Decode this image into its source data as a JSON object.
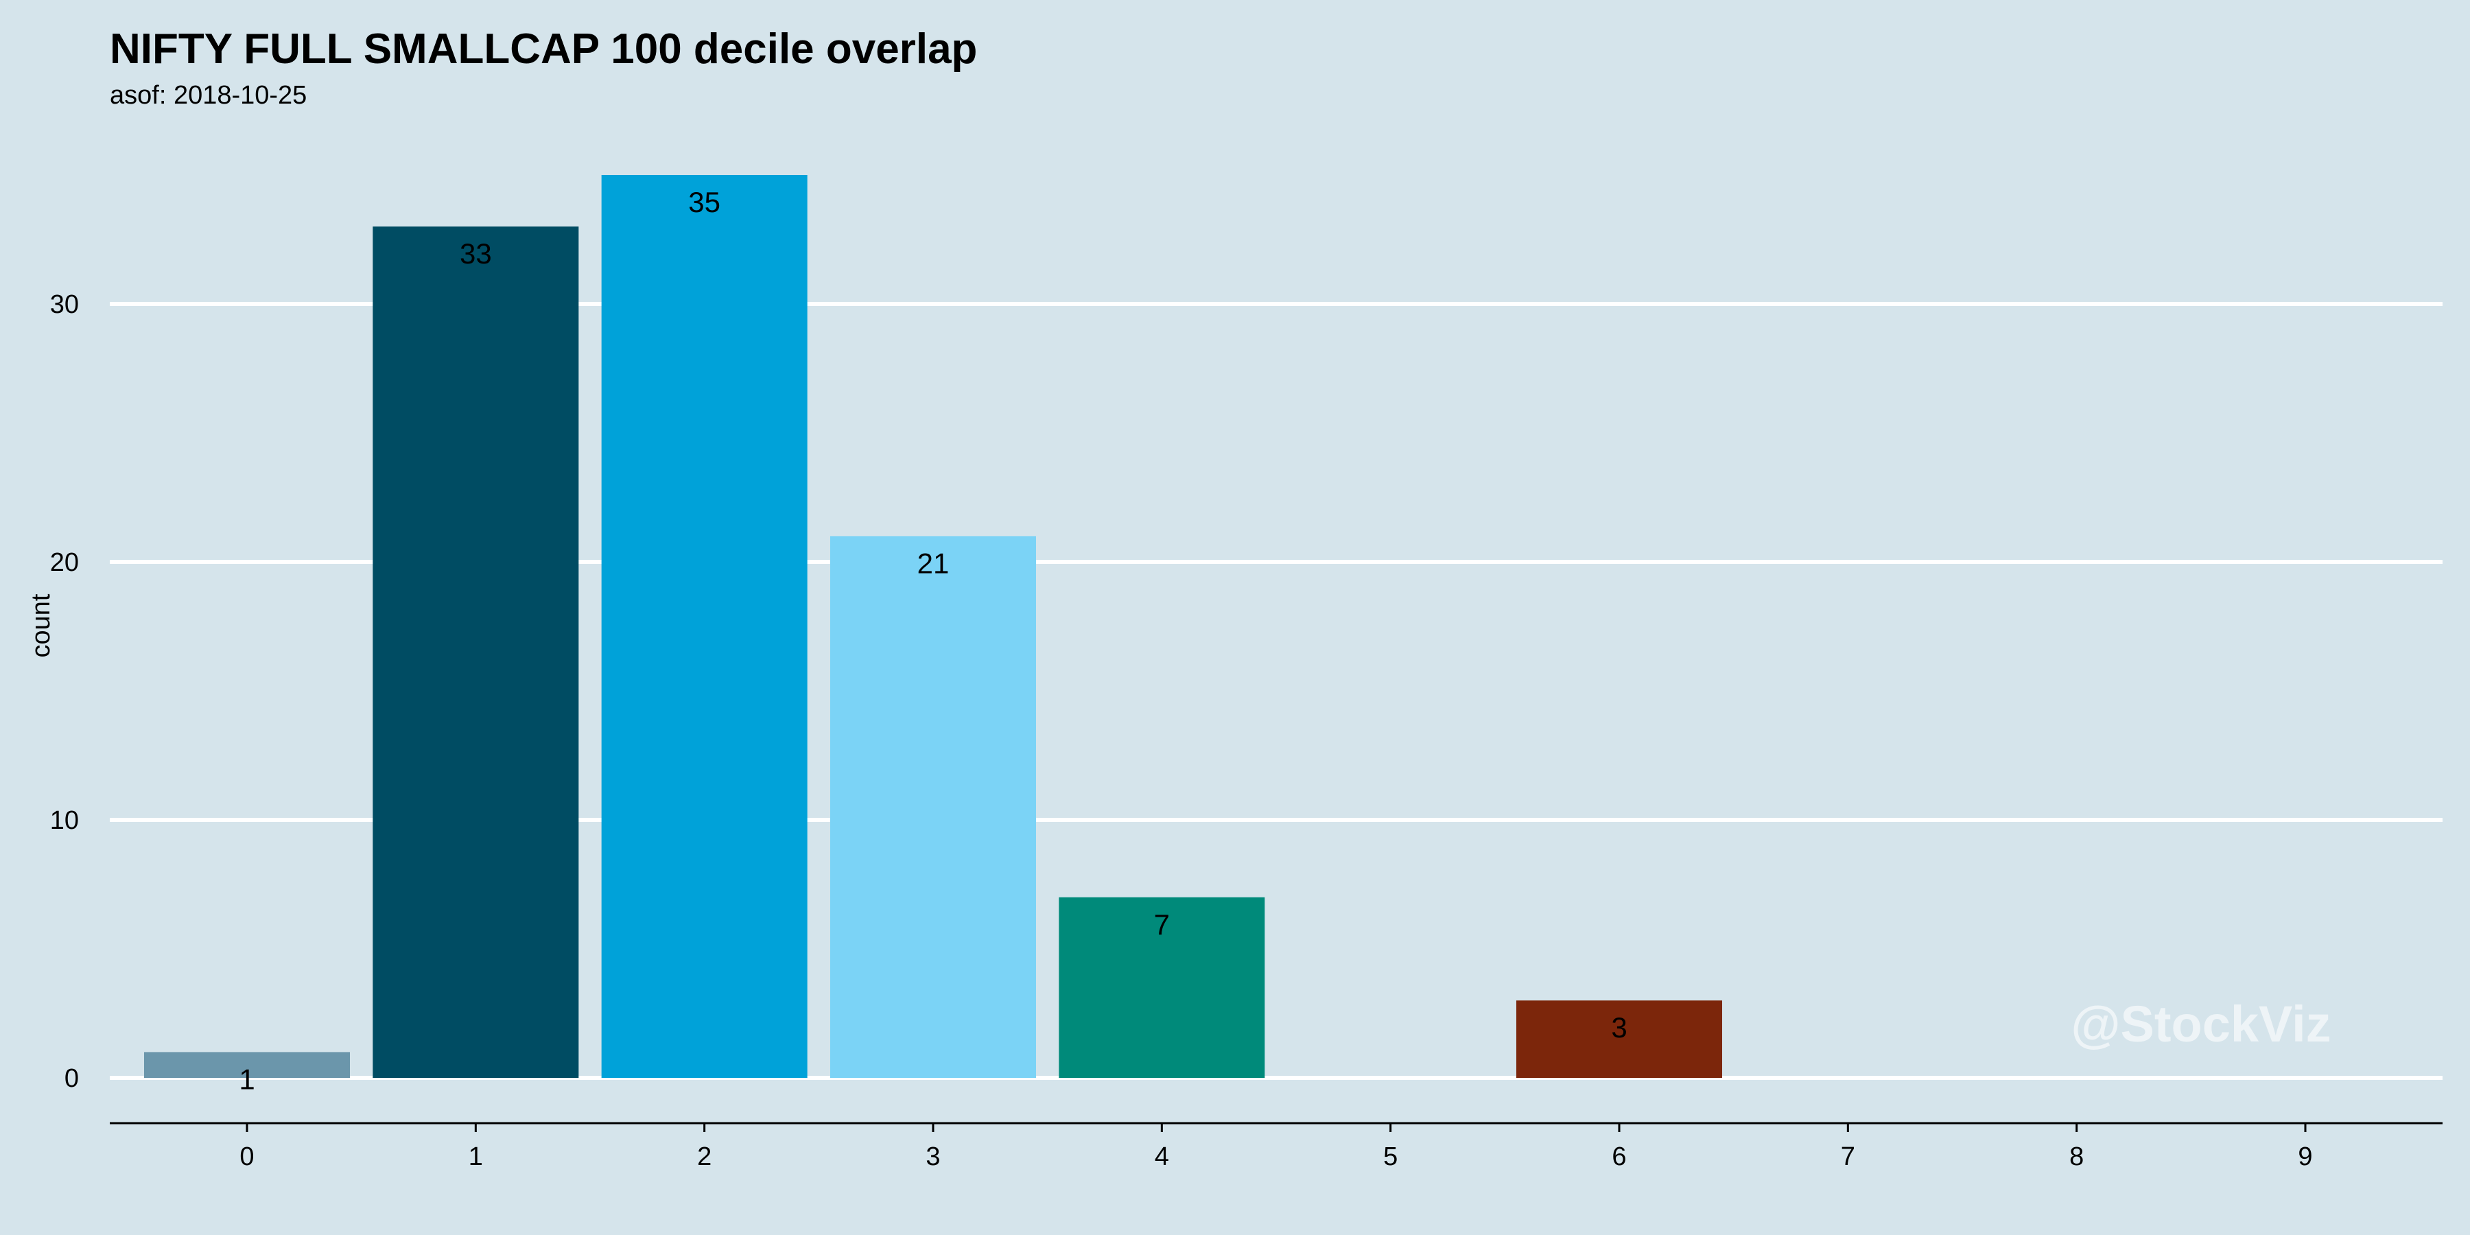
{
  "chart_data": {
    "type": "bar",
    "title": "NIFTY FULL SMALLCAP 100 decile overlap",
    "subtitle": "asof: 2018-10-25",
    "xlabel": "",
    "ylabel": "count",
    "categories": [
      "0",
      "1",
      "2",
      "3",
      "4",
      "5",
      "6",
      "7",
      "8",
      "9"
    ],
    "values": [
      1,
      33,
      35,
      21,
      7,
      0,
      3,
      0,
      0,
      0
    ],
    "data_labels": [
      "1",
      "33",
      "35",
      "21",
      "7",
      "",
      "3",
      "",
      "",
      ""
    ],
    "bar_colors": [
      "#6b96ab",
      "#004c63",
      "#00a2d9",
      "#7bd3f6",
      "#008a7a",
      "#d5e4eb",
      "#7c260b",
      "#d5e4eb",
      "#d5e4eb",
      "#d5e4eb"
    ],
    "ylim": [
      0,
      35
    ],
    "yticks": [
      0,
      10,
      20,
      30
    ],
    "grid": true,
    "legend": "none",
    "watermark": "@StockViz",
    "colors": {
      "background": "#d5e4eb",
      "gridline": "#ffffff",
      "axis": "#000000",
      "watermark": "#eef4f7"
    }
  }
}
